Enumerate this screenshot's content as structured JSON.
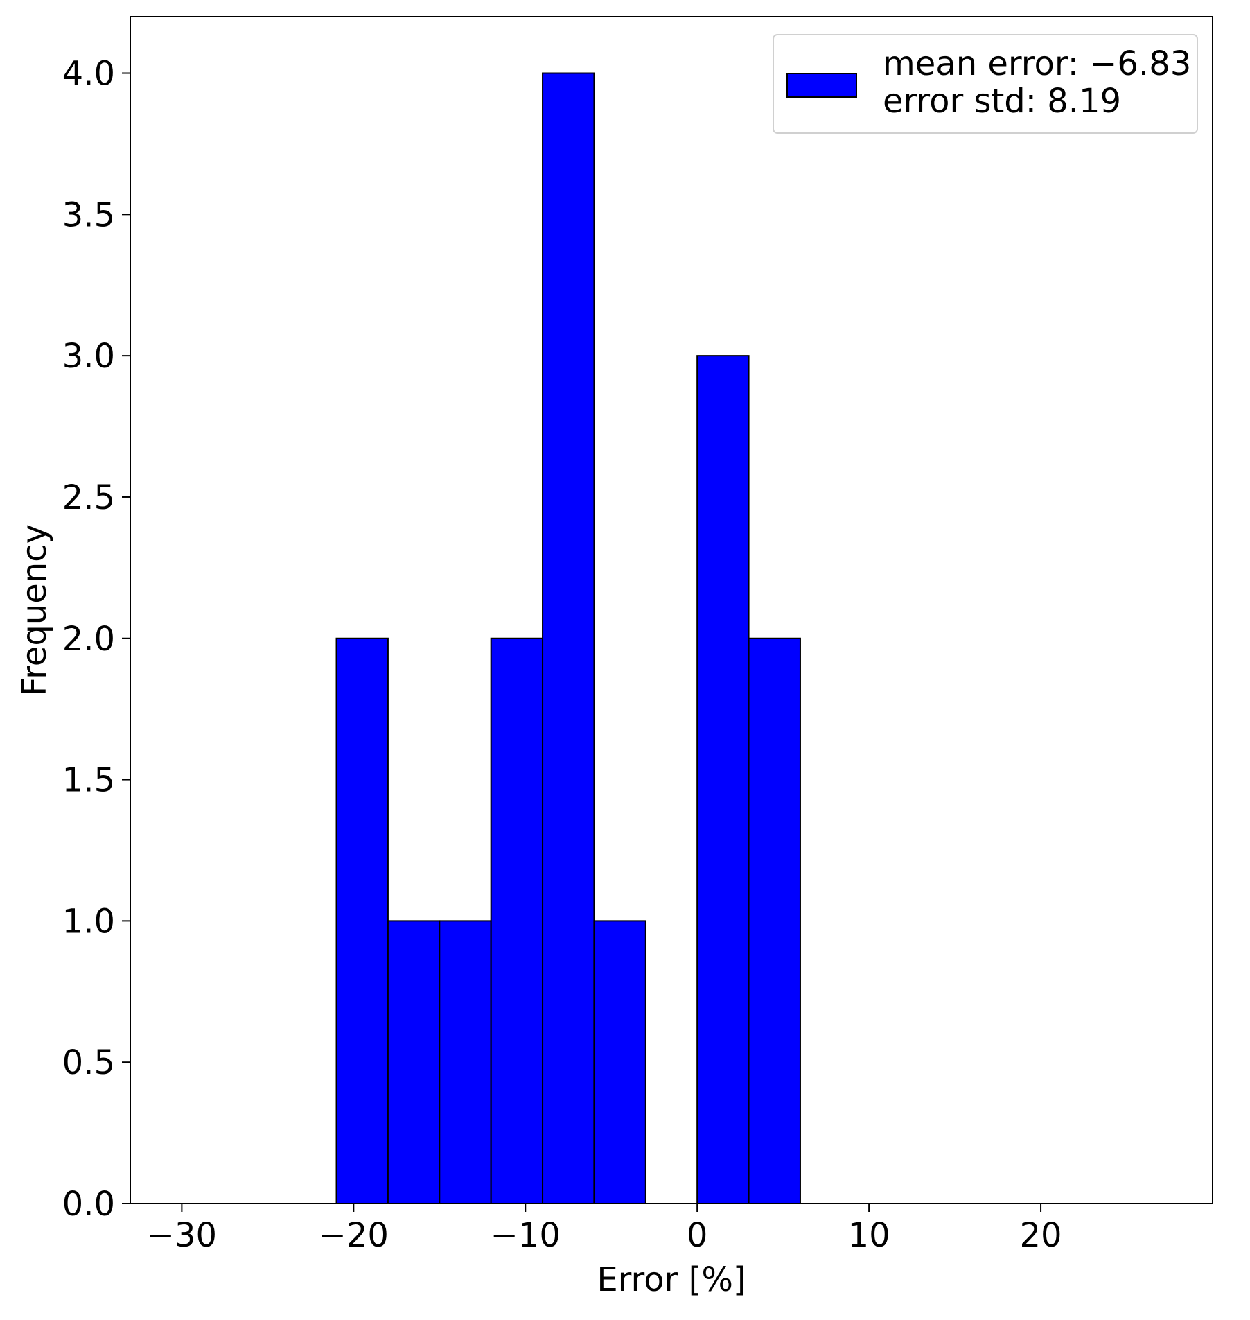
{
  "chart_data": {
    "type": "bar",
    "subtype": "histogram",
    "xlabel": "Error [%]",
    "ylabel": "Frequency",
    "xlim": [
      -33,
      30
    ],
    "ylim": [
      0,
      4.2
    ],
    "xticks": [
      -30,
      -20,
      -10,
      0,
      10,
      20
    ],
    "xtick_labels": [
      "−30",
      "−20",
      "−10",
      "0",
      "10",
      "20"
    ],
    "yticks": [
      0.0,
      0.5,
      1.0,
      1.5,
      2.0,
      2.5,
      3.0,
      3.5,
      4.0
    ],
    "ytick_labels": [
      "0.0",
      "0.5",
      "1.0",
      "1.5",
      "2.0",
      "2.5",
      "3.0",
      "3.5",
      "4.0"
    ],
    "bins": [
      {
        "start": -21,
        "end": -18,
        "count": 2
      },
      {
        "start": -18,
        "end": -15,
        "count": 1
      },
      {
        "start": -15,
        "end": -12,
        "count": 1
      },
      {
        "start": -12,
        "end": -9,
        "count": 2
      },
      {
        "start": -9,
        "end": -6,
        "count": 4
      },
      {
        "start": -6,
        "end": -3,
        "count": 1
      },
      {
        "start": -3,
        "end": 0,
        "count": 0
      },
      {
        "start": 0,
        "end": 3,
        "count": 3
      },
      {
        "start": 3,
        "end": 6,
        "count": 2
      }
    ],
    "legend": {
      "position": "upper-right",
      "lines": [
        "mean error: −6.83",
        "error std: 8.19"
      ]
    },
    "bar_color": "#0000ff",
    "edge_color": "#000000",
    "grid": false
  }
}
